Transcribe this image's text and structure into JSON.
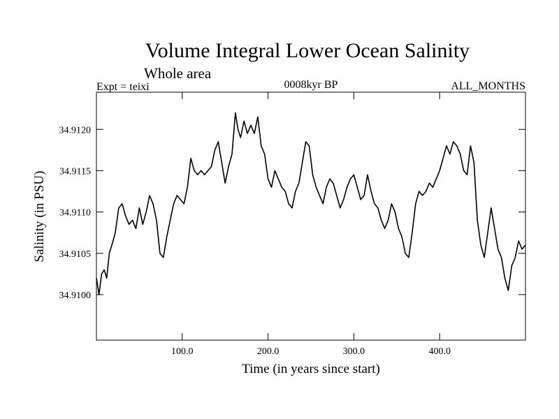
{
  "chart_data": {
    "type": "line",
    "title": "Volume Integral Lower Ocean Salinity",
    "subtitle": "Whole area",
    "annotations": {
      "left": "Expt = teixi",
      "center": "0008kyr BP",
      "right": "ALL_MONTHS"
    },
    "xlabel": "Time (in years since start)",
    "ylabel": "Salinity (in PSU)",
    "xlim": [
      0,
      500
    ],
    "ylim": [
      34.90945,
      34.91245
    ],
    "x_ticks": [
      100,
      200,
      300,
      400
    ],
    "x_tick_labels": [
      "100.0",
      "200.0",
      "300.0",
      "400.0"
    ],
    "y_ticks": [
      34.91,
      34.9105,
      34.911,
      34.9115,
      34.912
    ],
    "y_tick_labels": [
      "34.9100",
      "34.9105",
      "34.9110",
      "34.9115",
      "34.9120"
    ],
    "grid": false,
    "series": [
      {
        "name": "Salinity",
        "x": [
          0,
          3,
          6,
          9,
          12,
          15,
          18,
          22,
          26,
          30,
          34,
          38,
          42,
          46,
          50,
          54,
          58,
          62,
          66,
          70,
          74,
          78,
          82,
          86,
          90,
          94,
          98,
          102,
          106,
          110,
          114,
          118,
          122,
          126,
          130,
          134,
          138,
          142,
          146,
          150,
          154,
          158,
          162,
          165,
          168,
          172,
          176,
          180,
          184,
          188,
          192,
          196,
          200,
          204,
          208,
          212,
          216,
          220,
          224,
          228,
          232,
          236,
          240,
          244,
          248,
          252,
          256,
          260,
          264,
          268,
          272,
          276,
          280,
          284,
          288,
          292,
          296,
          300,
          304,
          308,
          312,
          316,
          320,
          324,
          328,
          332,
          336,
          340,
          344,
          348,
          352,
          356,
          360,
          364,
          368,
          372,
          376,
          380,
          384,
          388,
          392,
          396,
          400,
          404,
          408,
          412,
          416,
          420,
          424,
          428,
          432,
          436,
          440,
          444,
          448,
          452,
          456,
          460,
          464,
          468,
          472,
          476,
          480,
          484,
          488,
          492,
          496,
          500
        ],
        "values": [
          34.9102,
          34.91,
          34.91025,
          34.9103,
          34.9102,
          34.9105,
          34.9106,
          34.91075,
          34.91105,
          34.9111,
          34.91095,
          34.91085,
          34.9109,
          34.9108,
          34.91105,
          34.91085,
          34.911,
          34.9112,
          34.9111,
          34.9109,
          34.9105,
          34.91045,
          34.9107,
          34.9109,
          34.9111,
          34.9112,
          34.91115,
          34.9111,
          34.9113,
          34.91165,
          34.9115,
          34.91145,
          34.9115,
          34.91145,
          34.9115,
          34.91155,
          34.91175,
          34.91185,
          34.9116,
          34.91135,
          34.91155,
          34.9117,
          34.9122,
          34.912,
          34.9119,
          34.9121,
          34.91195,
          34.91205,
          34.91195,
          34.91215,
          34.9118,
          34.9117,
          34.9114,
          34.9113,
          34.9115,
          34.9114,
          34.9113,
          34.91125,
          34.9111,
          34.91105,
          34.91125,
          34.91135,
          34.9116,
          34.91185,
          34.9118,
          34.91145,
          34.9113,
          34.9112,
          34.9111,
          34.9113,
          34.9114,
          34.91135,
          34.9112,
          34.91105,
          34.91115,
          34.9113,
          34.9114,
          34.91145,
          34.9113,
          34.91115,
          34.9112,
          34.91145,
          34.91125,
          34.9111,
          34.91105,
          34.9109,
          34.9108,
          34.9109,
          34.9111,
          34.911,
          34.9108,
          34.9107,
          34.9105,
          34.91045,
          34.91075,
          34.9111,
          34.91125,
          34.9112,
          34.91125,
          34.91135,
          34.9113,
          34.9114,
          34.9115,
          34.91165,
          34.9118,
          34.9117,
          34.91185,
          34.9118,
          34.9117,
          34.9115,
          34.91145,
          34.9118,
          34.9116,
          34.9109,
          34.9106,
          34.91045,
          34.91075,
          34.91105,
          34.9108,
          34.91055,
          34.91045,
          34.9102,
          34.91005,
          34.91035,
          34.91045,
          34.91065,
          34.91055,
          34.9106
        ]
      }
    ]
  }
}
